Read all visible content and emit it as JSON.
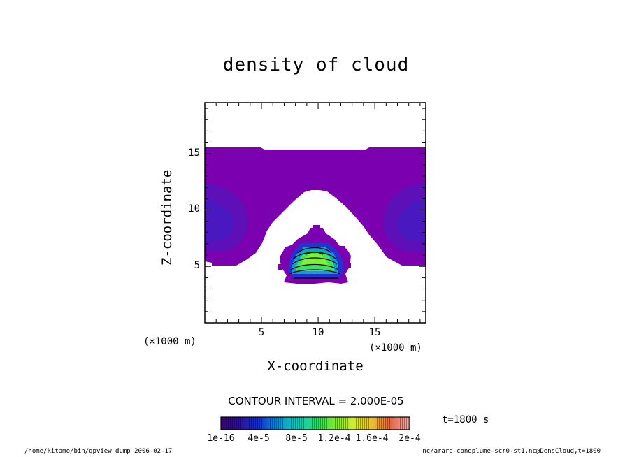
{
  "chart_data": {
    "type": "heatmap",
    "title": "density of cloud",
    "xlabel": "X-coordinate",
    "ylabel": "Z-coordinate",
    "x_unit": "(×1000 m)",
    "y_unit": "(×1000 m)",
    "xlim": [
      0,
      19.5
    ],
    "ylim": [
      0,
      19.5
    ],
    "x_ticks": [
      "5",
      "10",
      "15"
    ],
    "y_ticks": [
      "5",
      "10",
      "15"
    ],
    "contour_interval_text": "CONTOUR INTERVAL = 2.000E-05",
    "time_label": "t=1800 s",
    "colorbar": {
      "tick_labels": [
        "1e-16",
        "4e-5",
        "8e-5",
        "1.2e-4",
        "1.6e-4",
        "2e-4"
      ],
      "range": [
        1e-16,
        0.0002
      ]
    },
    "regions": [
      {
        "name": "upper cloud layer",
        "x_range": [
          0,
          19.5
        ],
        "z_range": [
          5.5,
          15.8
        ],
        "level": "1e-16 to 2e-5"
      },
      {
        "name": "central cloud",
        "x_center": 9.8,
        "z_range": [
          3.6,
          8.4
        ],
        "peak": "about 1e-4"
      }
    ]
  },
  "footer": {
    "left": "/home/kitamo/bin/gpview_dump  2006-02-17",
    "right": "nc/arare-condplume-scr0-st1.nc@DensCloud,t=1800"
  }
}
